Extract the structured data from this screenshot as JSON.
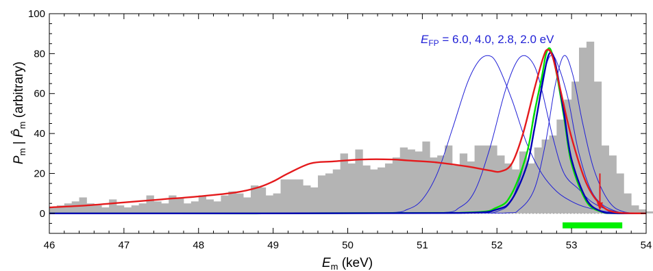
{
  "chart_data": {
    "type": "area",
    "xlabel": {
      "main": "E",
      "sub": "m",
      "rest": " (keV)"
    },
    "ylabel": {
      "p1": "P",
      "s1": "m",
      "sep": " | ",
      "p2": "P̂",
      "s2": "m",
      "rest": " (arbitrary)"
    },
    "xlim": [
      46,
      54
    ],
    "ylim": [
      -10,
      100
    ],
    "x_ticks": [
      "46",
      "47",
      "48",
      "49",
      "50",
      "51",
      "52",
      "53",
      "54"
    ],
    "y_ticks": [
      "0",
      "20",
      "40",
      "60",
      "80",
      "100"
    ],
    "annotation": {
      "main": "E",
      "sub": "FP",
      "rest": " = 6.0,  4.0,  2.8,  2.0 eV"
    },
    "colors": {
      "histogram": "#b4b4b4",
      "red": "#e41a1c",
      "blue_thin": "#1f1fd6",
      "blue_thick": "#0000b4",
      "green": "#00e000",
      "marker": "#e41a1c",
      "bar_green": "#00f000"
    },
    "histogram": {
      "x_start": 46.0,
      "bin_width": 0.1,
      "values": [
        3,
        4,
        5,
        6,
        8,
        5,
        4,
        3,
        7,
        4,
        3,
        4,
        5,
        9,
        6,
        5,
        9,
        8,
        5,
        6,
        9,
        7,
        6,
        9,
        11,
        10,
        8,
        14,
        13,
        9,
        10,
        17,
        17,
        17,
        14,
        13,
        19,
        20,
        22,
        30,
        25,
        32,
        24,
        22,
        23,
        25,
        28,
        33,
        32,
        31,
        36,
        28,
        29,
        34,
        24,
        30,
        26,
        34,
        34,
        34,
        29,
        25,
        22,
        31,
        25,
        33,
        37,
        39,
        47,
        57,
        66,
        83,
        86,
        66,
        34,
        29,
        20,
        10,
        4,
        2,
        1,
        0,
        0,
        0,
        0,
        0,
        0,
        0,
        0,
        0
      ]
    },
    "series": [
      {
        "style": "red-thick",
        "x": [
          46.0,
          46.5,
          47.0,
          47.5,
          48.0,
          48.5,
          48.8,
          49.0,
          49.2,
          49.5,
          49.8,
          50.2,
          50.6,
          50.8,
          51.2,
          51.6,
          51.9,
          52.05,
          52.2,
          52.35,
          52.5,
          52.62,
          52.68,
          52.75,
          52.85,
          53.0,
          53.2,
          53.4,
          53.6,
          54.0
        ],
        "y": [
          3,
          4,
          5.5,
          7,
          8.5,
          10.5,
          13,
          16,
          20,
          25,
          26,
          27,
          27,
          26.5,
          25.5,
          23.5,
          21.5,
          21,
          25,
          40,
          62,
          78,
          82,
          78,
          62,
          38,
          15,
          4,
          0.5,
          0
        ]
      },
      {
        "style": "green",
        "x": [
          46,
          51.5,
          52.0,
          52.2,
          52.4,
          52.5,
          52.6,
          52.66,
          52.72,
          52.8,
          52.9,
          53.0,
          53.2,
          53.4,
          53.6,
          54.0
        ],
        "y": [
          0,
          0.3,
          3,
          10,
          30,
          50,
          68,
          80,
          82,
          70,
          48,
          25,
          6,
          0.8,
          0.1,
          0
        ]
      },
      {
        "style": "blue-thick",
        "x": [
          46,
          51.5,
          52.0,
          52.2,
          52.4,
          52.5,
          52.6,
          52.68,
          52.74,
          52.8,
          52.9,
          53.0,
          53.2,
          53.4,
          53.6,
          54.0
        ],
        "y": [
          0,
          0.2,
          2,
          7,
          24,
          42,
          63,
          78,
          80,
          72,
          50,
          27,
          7,
          1,
          0.1,
          0
        ]
      },
      {
        "style": "blue-thin",
        "x": [
          46,
          50.5,
          50.8,
          51.0,
          51.2,
          51.4,
          51.6,
          51.75,
          51.88,
          52.0,
          52.2,
          52.4,
          52.6,
          52.8,
          53.0,
          53.2,
          53.5,
          54.0
        ],
        "y": [
          0,
          0.3,
          2,
          7,
          20,
          42,
          65,
          76,
          79,
          75,
          57,
          35,
          20,
          11,
          6,
          3,
          0.8,
          0
        ]
      },
      {
        "style": "blue-thin",
        "x": [
          46,
          51.2,
          51.5,
          51.7,
          51.9,
          52.1,
          52.25,
          52.37,
          52.5,
          52.6,
          52.75,
          52.9,
          53.1,
          53.3,
          53.6,
          54.0
        ],
        "y": [
          0,
          0.3,
          3,
          11,
          32,
          60,
          75,
          79,
          74,
          62,
          38,
          20,
          12,
          5,
          0.8,
          0
        ]
      },
      {
        "style": "blue-thin",
        "x": [
          46,
          51.7,
          52.0,
          52.2,
          52.4,
          52.55,
          52.65,
          52.72,
          52.8,
          52.95,
          53.1,
          53.3,
          53.6,
          54.0
        ],
        "y": [
          0,
          0.2,
          1,
          7,
          30,
          58,
          73,
          79,
          76,
          58,
          30,
          9,
          1,
          0
        ]
      },
      {
        "style": "blue-thin",
        "x": [
          46,
          52.1,
          52.3,
          52.5,
          52.65,
          52.78,
          52.9,
          53.02,
          53.15,
          53.3,
          53.5,
          53.7,
          54.0
        ],
        "y": [
          0,
          0.2,
          2,
          12,
          35,
          64,
          79,
          69,
          45,
          22,
          6,
          0.8,
          0
        ]
      }
    ],
    "marker_x": 53.38,
    "green_bar_range": [
      52.88,
      53.68
    ]
  }
}
